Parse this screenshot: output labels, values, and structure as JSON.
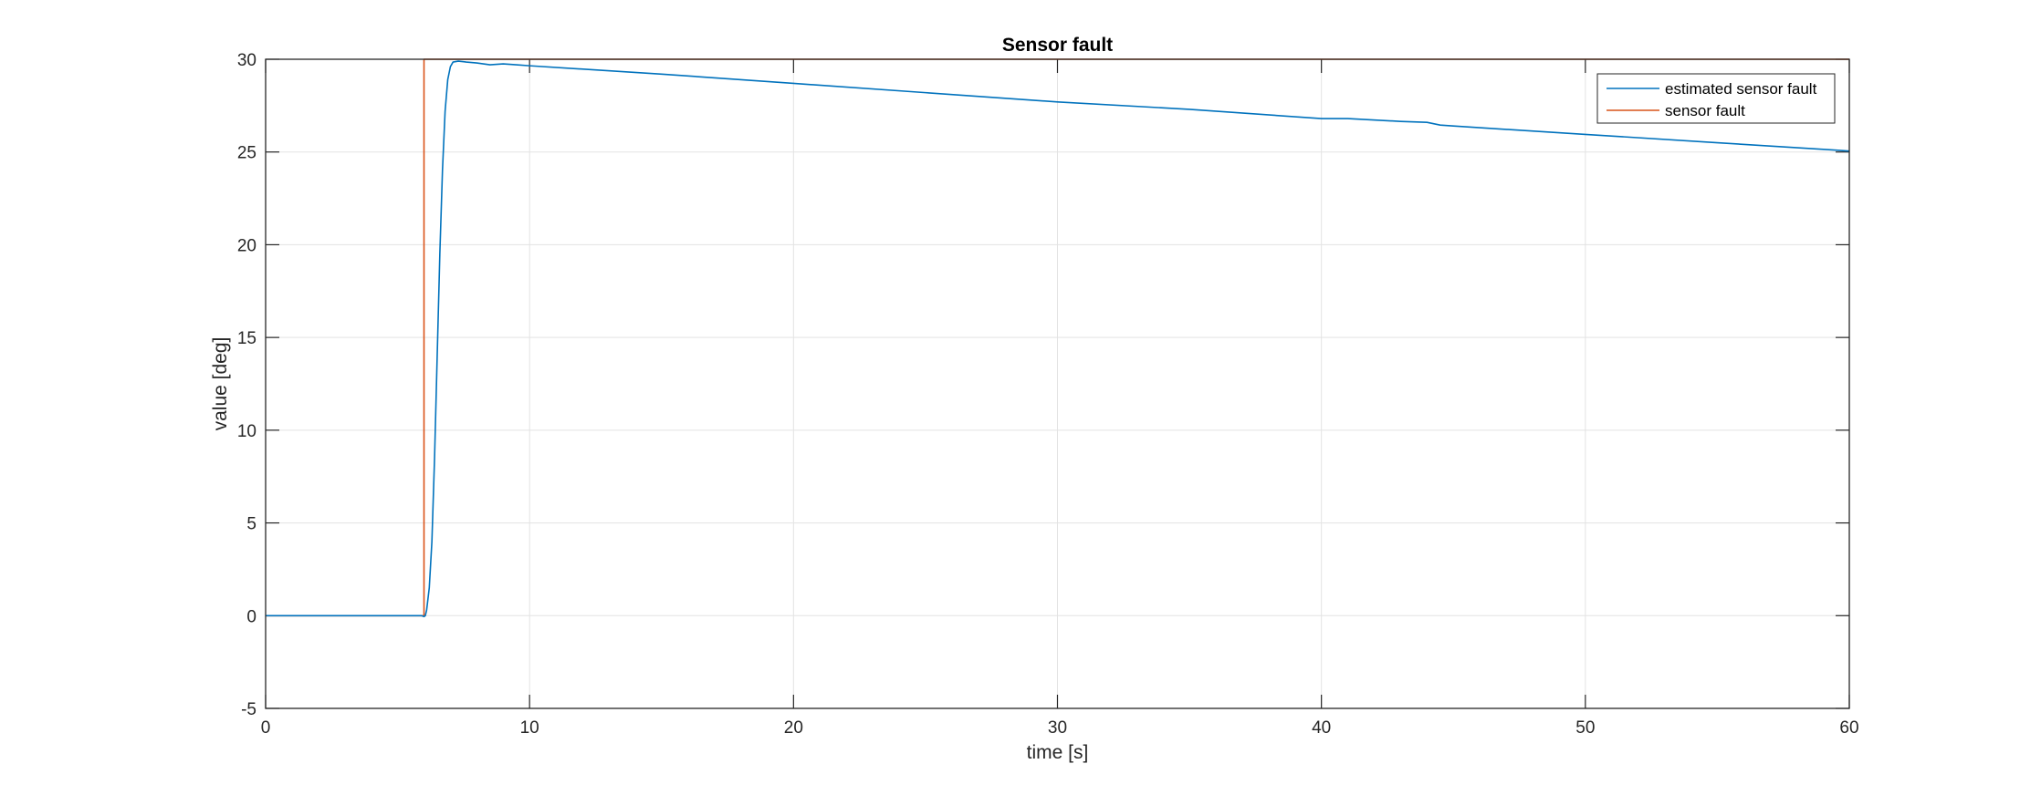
{
  "chart_data": {
    "type": "line",
    "title": "Sensor fault",
    "xlabel": "time [s]",
    "ylabel": "value [deg]",
    "xlim": [
      0,
      60
    ],
    "ylim": [
      -5,
      30
    ],
    "xticks": [
      0,
      10,
      20,
      30,
      40,
      50,
      60
    ],
    "yticks": [
      -5,
      0,
      5,
      10,
      15,
      20,
      25,
      30
    ],
    "xtick_labels": [
      "0",
      "10",
      "20",
      "30",
      "40",
      "50",
      "60"
    ],
    "ytick_labels": [
      "-5",
      "0",
      "5",
      "10",
      "15",
      "20",
      "25",
      "30"
    ],
    "grid": true,
    "legend_position": "top-right",
    "series": [
      {
        "name": "estimated sensor fault",
        "color": "#0072BD",
        "x": [
          0,
          5.9,
          6.0,
          6.05,
          6.1,
          6.2,
          6.3,
          6.4,
          6.5,
          6.6,
          6.7,
          6.8,
          6.9,
          7.0,
          7.1,
          7.3,
          7.6,
          8.0,
          8.5,
          9.0,
          9.5,
          10.0,
          15.0,
          20.0,
          25.0,
          30.0,
          35.0,
          40.0,
          41.0,
          43.0,
          44.0,
          44.5,
          45.0,
          50.0,
          55.0,
          59.5,
          60.0
        ],
        "y": [
          0,
          0,
          -0.05,
          0.0,
          0.3,
          1.5,
          4.0,
          8.5,
          14.0,
          19.5,
          24.0,
          27.2,
          28.9,
          29.6,
          29.85,
          29.9,
          29.85,
          29.8,
          29.7,
          29.75,
          29.7,
          29.65,
          29.2,
          28.7,
          28.2,
          27.7,
          27.3,
          26.8,
          26.8,
          26.65,
          26.6,
          26.45,
          26.4,
          25.95,
          25.5,
          25.1,
          25.05
        ]
      },
      {
        "name": "sensor fault",
        "color": "#D95319",
        "x": [
          0,
          6.0,
          6.0,
          60
        ],
        "y": [
          0,
          0,
          30,
          30
        ]
      }
    ]
  }
}
